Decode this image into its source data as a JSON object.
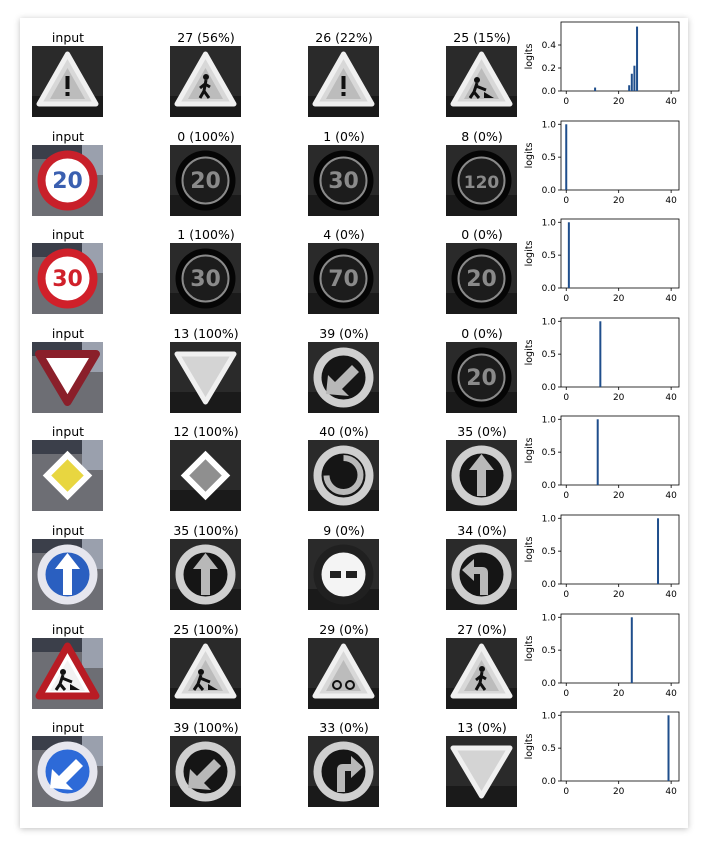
{
  "chart_data": [
    {
      "type": "bar",
      "input_title": "input",
      "input_sign": "triangle-caution",
      "input_color": "#b81c24",
      "predictions": [
        {
          "title": "27 (56%)",
          "sign": "triangle-pedestrian"
        },
        {
          "title": "26 (22%)",
          "sign": "triangle-caution"
        },
        {
          "title": "25 (15%)",
          "sign": "triangle-worker"
        }
      ],
      "ylabel": "logits",
      "xticks": [
        0,
        20,
        40
      ],
      "yticks": [
        "0.0",
        "0.2",
        "0.4"
      ],
      "xlim": [
        -2,
        43
      ],
      "ylim": [
        0,
        0.6
      ],
      "bars": [
        {
          "x": 11,
          "y": 0.03
        },
        {
          "x": 24,
          "y": 0.05
        },
        {
          "x": 25,
          "y": 0.15
        },
        {
          "x": 26,
          "y": 0.22
        },
        {
          "x": 27,
          "y": 0.56
        }
      ]
    },
    {
      "type": "bar",
      "input_title": "input",
      "input_sign": "speed-20-color",
      "input_color": "#c8202a",
      "predictions": [
        {
          "title": "0 (100%)",
          "sign": "speed-20"
        },
        {
          "title": "1 (0%)",
          "sign": "speed-30"
        },
        {
          "title": "8 (0%)",
          "sign": "speed-120"
        }
      ],
      "ylabel": "logits",
      "xticks": [
        0,
        20,
        40
      ],
      "yticks": [
        "0.0",
        "0.5",
        "1.0"
      ],
      "xlim": [
        -2,
        43
      ],
      "ylim": [
        0,
        1.05
      ],
      "bars": [
        {
          "x": 0,
          "y": 1.0
        }
      ]
    },
    {
      "type": "bar",
      "input_title": "input",
      "input_sign": "speed-30-color",
      "input_color": "#d0202a",
      "predictions": [
        {
          "title": "1 (100%)",
          "sign": "speed-30"
        },
        {
          "title": "4 (0%)",
          "sign": "speed-70"
        },
        {
          "title": "0 (0%)",
          "sign": "speed-20"
        }
      ],
      "ylabel": "logits",
      "xticks": [
        0,
        20,
        40
      ],
      "yticks": [
        "0.0",
        "0.5",
        "1.0"
      ],
      "xlim": [
        -2,
        43
      ],
      "ylim": [
        0,
        1.05
      ],
      "bars": [
        {
          "x": 1,
          "y": 1.0
        }
      ]
    },
    {
      "type": "bar",
      "input_title": "input",
      "input_sign": "yield-color",
      "input_color": "#8a1f2a",
      "predictions": [
        {
          "title": "13 (100%)",
          "sign": "yield"
        },
        {
          "title": "39 (0%)",
          "sign": "keep-left"
        },
        {
          "title": "0 (0%)",
          "sign": "speed-20"
        }
      ],
      "ylabel": "logits",
      "xticks": [
        0,
        20,
        40
      ],
      "yticks": [
        "0.0",
        "0.5",
        "1.0"
      ],
      "xlim": [
        -2,
        43
      ],
      "ylim": [
        0,
        1.05
      ],
      "bars": [
        {
          "x": 13,
          "y": 1.0
        }
      ]
    },
    {
      "type": "bar",
      "input_title": "input",
      "input_sign": "priority-road-color",
      "input_color": "#e8d640",
      "predictions": [
        {
          "title": "12 (100%)",
          "sign": "priority-road"
        },
        {
          "title": "40 (0%)",
          "sign": "roundabout"
        },
        {
          "title": "35 (0%)",
          "sign": "ahead-only"
        }
      ],
      "ylabel": "logits",
      "xticks": [
        0,
        20,
        40
      ],
      "yticks": [
        "0.0",
        "0.5",
        "1.0"
      ],
      "xlim": [
        -2,
        43
      ],
      "ylim": [
        0,
        1.05
      ],
      "bars": [
        {
          "x": 12,
          "y": 1.0
        }
      ]
    },
    {
      "type": "bar",
      "input_title": "input",
      "input_sign": "ahead-only-color",
      "input_color": "#2a5fc0",
      "predictions": [
        {
          "title": "35 (100%)",
          "sign": "ahead-only"
        },
        {
          "title": "9 (0%)",
          "sign": "no-passing"
        },
        {
          "title": "34 (0%)",
          "sign": "turn-left-ahead"
        }
      ],
      "ylabel": "logits",
      "xticks": [
        0,
        20,
        40
      ],
      "yticks": [
        "0.0",
        "0.5",
        "1.0"
      ],
      "xlim": [
        -2,
        43
      ],
      "ylim": [
        0,
        1.05
      ],
      "bars": [
        {
          "x": 35,
          "y": 1.0
        }
      ]
    },
    {
      "type": "bar",
      "input_title": "input",
      "input_sign": "triangle-worker-color",
      "input_color": "#b81c24",
      "predictions": [
        {
          "title": "25 (100%)",
          "sign": "triangle-worker"
        },
        {
          "title": "29 (0%)",
          "sign": "triangle-bicycle-dark"
        },
        {
          "title": "27 (0%)",
          "sign": "triangle-pedestrian"
        }
      ],
      "ylabel": "logits",
      "xticks": [
        0,
        20,
        40
      ],
      "yticks": [
        "0.0",
        "0.5",
        "1.0"
      ],
      "xlim": [
        -2,
        43
      ],
      "ylim": [
        0,
        1.05
      ],
      "bars": [
        {
          "x": 25,
          "y": 1.0
        }
      ]
    },
    {
      "type": "bar",
      "input_title": "input",
      "input_sign": "keep-left-color",
      "input_color": "#2d6ad8",
      "predictions": [
        {
          "title": "39 (100%)",
          "sign": "keep-left"
        },
        {
          "title": "33 (0%)",
          "sign": "turn-right-dark"
        },
        {
          "title": "13 (0%)",
          "sign": "yield"
        }
      ],
      "ylabel": "logits",
      "xticks": [
        0,
        20,
        40
      ],
      "yticks": [
        "0.0",
        "0.5",
        "1.0"
      ],
      "xlim": [
        -2,
        43
      ],
      "ylim": [
        0,
        1.05
      ],
      "bars": [
        {
          "x": 39,
          "y": 1.0
        }
      ]
    }
  ],
  "colors": {
    "bar": "#1f4e8c",
    "axis": "#000000"
  }
}
